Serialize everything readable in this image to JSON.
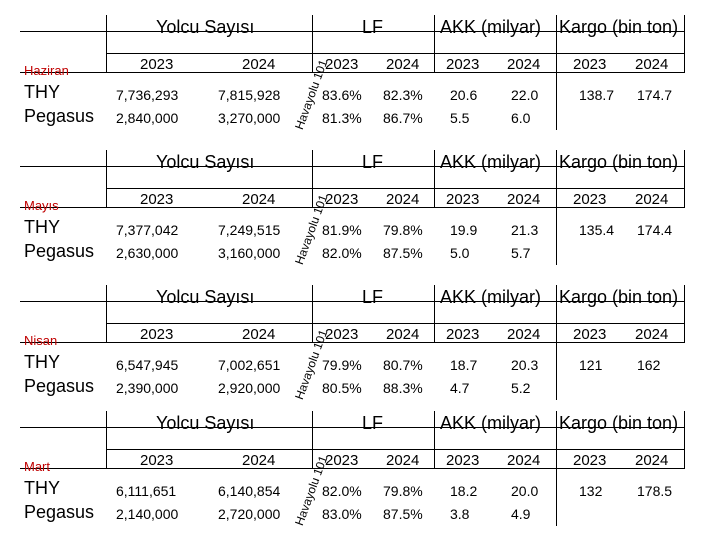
{
  "header": {
    "group_passengers": "Yolcu Sayısı",
    "group_lf": "LF",
    "group_akk": "AKK (milyar)",
    "group_cargo": "Kargo (bin ton)",
    "year_a": "2023",
    "year_b": "2024"
  },
  "watermark": "Havayolu 101",
  "blocks": [
    {
      "month": "Haziran",
      "thy": {
        "label": "THY",
        "pax_2023": "7,736,293",
        "pax_2024": "7,815,928",
        "lf_2023": "83.6%",
        "lf_2024": "82.3%",
        "akk_2023": "20.6",
        "akk_2024": "22.0",
        "cargo_2023": "138.7",
        "cargo_2024": "174.7"
      },
      "pgs": {
        "label": "Pegasus",
        "pax_2023": "2,840,000",
        "pax_2024": "3,270,000",
        "lf_2023": "81.3%",
        "lf_2024": "86.7%",
        "akk_2023": "5.5",
        "akk_2024": "6.0"
      }
    },
    {
      "month": "Mayıs",
      "thy": {
        "label": "THY",
        "pax_2023": "7,377,042",
        "pax_2024": "7,249,515",
        "lf_2023": "81.9%",
        "lf_2024": "79.8%",
        "akk_2023": "19.9",
        "akk_2024": "21.3",
        "cargo_2023": "135.4",
        "cargo_2024": "174.4"
      },
      "pgs": {
        "label": "Pegasus",
        "pax_2023": "2,630,000",
        "pax_2024": "3,160,000",
        "lf_2023": "82.0%",
        "lf_2024": "87.5%",
        "akk_2023": "5.0",
        "akk_2024": "5.7"
      }
    },
    {
      "month": "Nisan",
      "thy": {
        "label": "THY",
        "pax_2023": "6,547,945",
        "pax_2024": "7,002,651",
        "lf_2023": "79.9%",
        "lf_2024": "80.7%",
        "akk_2023": "18.7",
        "akk_2024": "20.3",
        "cargo_2023": "121",
        "cargo_2024": "162"
      },
      "pgs": {
        "label": "Pegasus",
        "pax_2023": "2,390,000",
        "pax_2024": "2,920,000",
        "lf_2023": "80.5%",
        "lf_2024": "88.3%",
        "akk_2023": "4.7",
        "akk_2024": "5.2"
      }
    },
    {
      "month": "Mart",
      "thy": {
        "label": "THY",
        "pax_2023": "6,111,651",
        "pax_2024": "6,140,854",
        "lf_2023": "82.0%",
        "lf_2024": "79.8%",
        "akk_2023": "18.2",
        "akk_2024": "20.0",
        "cargo_2023": "132",
        "cargo_2024": "178.5"
      },
      "pgs": {
        "label": "Pegasus",
        "pax_2023": "2,140,000",
        "pax_2024": "2,720,000",
        "lf_2023": "83.0%",
        "lf_2024": "87.5%",
        "akk_2023": "3.8",
        "akk_2024": "4.9"
      }
    }
  ]
}
